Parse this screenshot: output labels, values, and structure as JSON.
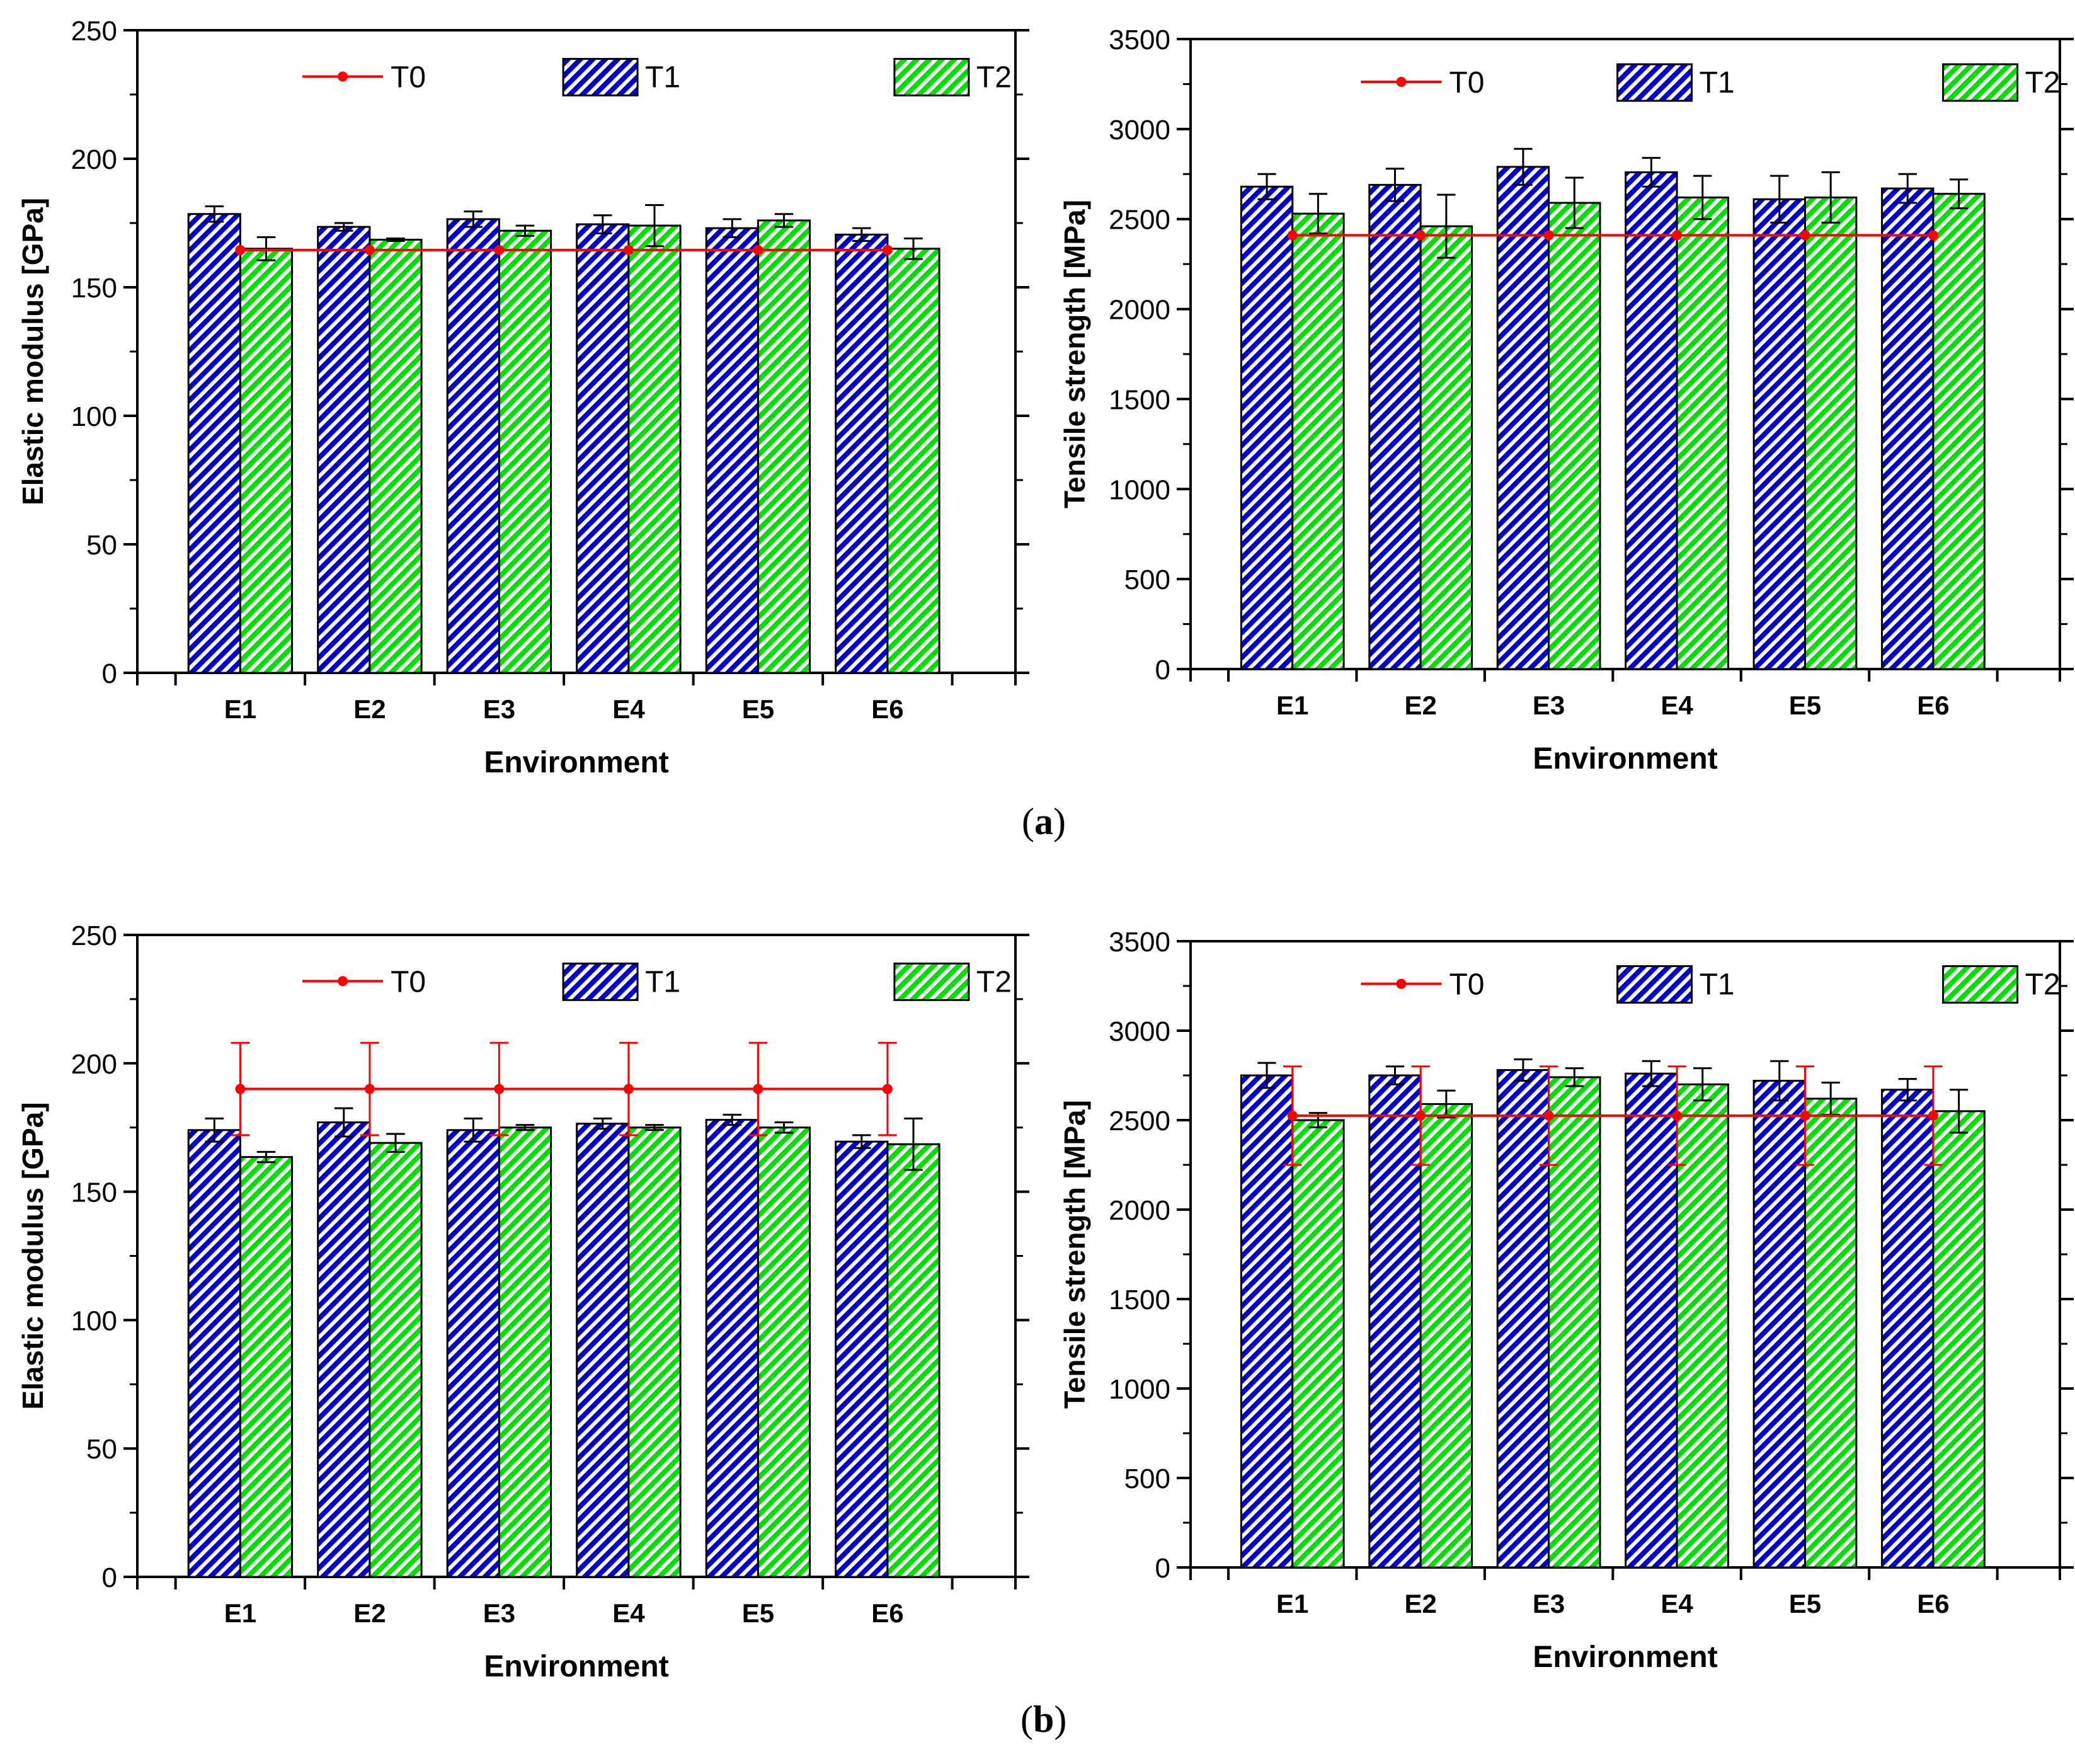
{
  "figure": {
    "labels": [
      "(a)",
      "(b)"
    ],
    "panel_letters": [
      "a",
      "b"
    ]
  },
  "colors": {
    "T0": "#ff0000",
    "T1": "#0000cc",
    "T2": "#00dd00",
    "axis": "#000000"
  },
  "chart_data": [
    {
      "type": "bar",
      "panel": "a",
      "position": "left",
      "xlabel": "Environment",
      "ylabel": "Elastic modulus [GPa]",
      "ylim": [
        0,
        250
      ],
      "yticks": [
        0,
        50,
        100,
        150,
        200,
        250
      ],
      "categories": [
        "E1",
        "E2",
        "E3",
        "E4",
        "E5",
        "E6"
      ],
      "legend": [
        "T0",
        "T1",
        "T2"
      ],
      "series": [
        {
          "name": "T1",
          "kind": "bar",
          "values": [
            178.5,
            173.5,
            176.5,
            174.5,
            173,
            170.5
          ],
          "errors": [
            3,
            1.5,
            3,
            3.5,
            3.5,
            2.5
          ]
        },
        {
          "name": "T2",
          "kind": "bar",
          "values": [
            165,
            168.5,
            172,
            174,
            176,
            165
          ],
          "errors": [
            4.5,
            0.5,
            2,
            8,
            2.5,
            4
          ]
        }
      ],
      "line": {
        "name": "T0",
        "value": 164.5,
        "error": 0
      }
    },
    {
      "type": "bar",
      "panel": "a",
      "position": "right",
      "xlabel": "Environment",
      "ylabel": "Tensile strength [MPa]",
      "ylim": [
        0,
        3500
      ],
      "yticks": [
        0,
        500,
        1000,
        1500,
        2000,
        2500,
        3000,
        3500
      ],
      "categories": [
        "E1",
        "E2",
        "E3",
        "E4",
        "E5",
        "E6"
      ],
      "legend": [
        "T0",
        "T1",
        "T2"
      ],
      "series": [
        {
          "name": "T1",
          "kind": "bar",
          "values": [
            2680,
            2690,
            2790,
            2760,
            2610,
            2670
          ],
          "errors": [
            70,
            90,
            100,
            80,
            130,
            80
          ]
        },
        {
          "name": "T2",
          "kind": "bar",
          "values": [
            2530,
            2460,
            2590,
            2620,
            2620,
            2640
          ],
          "errors": [
            110,
            175,
            140,
            120,
            140,
            80
          ]
        }
      ],
      "line": {
        "name": "T0",
        "value": 2410,
        "error": 0
      }
    },
    {
      "type": "bar",
      "panel": "b",
      "position": "left",
      "xlabel": "Environment",
      "ylabel": "Elastic modulus [GPa]",
      "ylim": [
        0,
        250
      ],
      "yticks": [
        0,
        50,
        100,
        150,
        200,
        250
      ],
      "categories": [
        "E1",
        "E2",
        "E3",
        "E4",
        "E5",
        "E6"
      ],
      "legend": [
        "T0",
        "T1",
        "T2"
      ],
      "series": [
        {
          "name": "T1",
          "kind": "bar",
          "values": [
            174,
            177,
            174,
            176.5,
            178,
            169.5
          ],
          "errors": [
            4.5,
            5.5,
            4.5,
            2,
            2,
            2.5
          ]
        },
        {
          "name": "T2",
          "kind": "bar",
          "values": [
            163.5,
            169,
            175,
            175,
            175,
            168.5
          ],
          "errors": [
            2,
            3.5,
            1,
            1,
            2,
            10
          ]
        }
      ],
      "line": {
        "name": "T0",
        "value": 190,
        "error": 18
      }
    },
    {
      "type": "bar",
      "panel": "b",
      "position": "right",
      "xlabel": "Environment",
      "ylabel": "Tensile strength [MPa]",
      "ylim": [
        0,
        3500
      ],
      "yticks": [
        0,
        500,
        1000,
        1500,
        2000,
        2500,
        3000,
        3500
      ],
      "categories": [
        "E1",
        "E2",
        "E3",
        "E4",
        "E5",
        "E6"
      ],
      "legend": [
        "T0",
        "T1",
        "T2"
      ],
      "series": [
        {
          "name": "T1",
          "kind": "bar",
          "values": [
            2750,
            2750,
            2780,
            2760,
            2720,
            2670
          ],
          "errors": [
            70,
            50,
            60,
            70,
            110,
            60
          ]
        },
        {
          "name": "T2",
          "kind": "bar",
          "values": [
            2500,
            2590,
            2740,
            2700,
            2620,
            2550
          ],
          "errors": [
            40,
            75,
            50,
            90,
            90,
            120
          ]
        }
      ],
      "line": {
        "name": "T0",
        "value": 2525,
        "error": 275
      }
    }
  ]
}
